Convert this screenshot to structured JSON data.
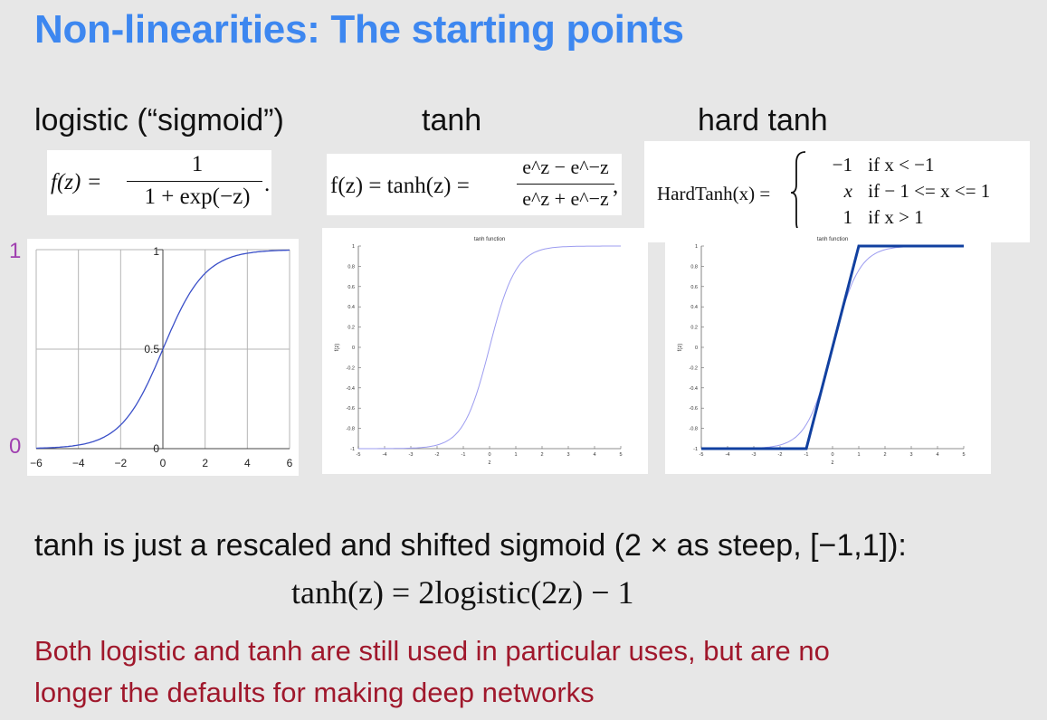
{
  "slide": {
    "title": "Non-linearities: The starting points"
  },
  "columns": {
    "logistic": {
      "heading": "logistic (“sigmoid”)",
      "formula": {
        "lhs": "f(z) =",
        "numerator": "1",
        "denominator": "1 + exp(−z)",
        "trail": "."
      },
      "y_top_label": "1",
      "y_bottom_label": "0"
    },
    "tanh": {
      "heading": "tanh",
      "formula": {
        "lhs": "f(z) = tanh(z) =",
        "numerator": "e^z − e^−z",
        "denominator": "e^z + e^−z",
        "trail": ","
      },
      "y_top_label": "1",
      "y_bottom_label": "−1"
    },
    "hardtanh": {
      "heading": "hard tanh",
      "formula": {
        "lhs": "HardTanh(x) =",
        "cases": [
          {
            "value": "−1",
            "condition": "if x < −1"
          },
          {
            "value": "x",
            "condition": "if − 1 <= x <= 1"
          },
          {
            "value": "1",
            "condition": "if x > 1"
          }
        ]
      }
    }
  },
  "chart_data": [
    {
      "type": "line",
      "series": [
        {
          "x": [
            -6,
            -5,
            -4,
            -3,
            -2,
            -1,
            0,
            1,
            2,
            3,
            4,
            5,
            6
          ],
          "y": [
            0.0025,
            0.0067,
            0.018,
            0.047,
            0.119,
            0.269,
            0.5,
            0.731,
            0.881,
            0.953,
            0.982,
            0.993,
            0.9975
          ]
        }
      ],
      "xlim": [
        -6,
        6
      ],
      "ylim": [
        0,
        1
      ],
      "xticks": [
        "−6",
        "−4",
        "−2",
        "0",
        "2",
        "4",
        "6"
      ],
      "yticks": [
        "0",
        "0.5",
        "1"
      ],
      "grid": true
    },
    {
      "type": "line",
      "title": "tanh function",
      "xlabel": "z",
      "ylabel": "f(z)",
      "series": [
        {
          "x": [
            -5,
            -4,
            -3,
            -2,
            -1.5,
            -1,
            -0.5,
            0,
            0.5,
            1,
            1.5,
            2,
            3,
            4,
            5
          ],
          "y": [
            -1,
            -0.999,
            -0.995,
            -0.964,
            -0.905,
            -0.762,
            -0.462,
            0,
            0.462,
            0.762,
            0.905,
            0.964,
            0.995,
            0.999,
            1
          ]
        }
      ],
      "xlim": [
        -5,
        5
      ],
      "ylim": [
        -1,
        1
      ],
      "xticks": [
        "-5",
        "-4",
        "-3",
        "-2",
        "-1",
        "0",
        "1",
        "2",
        "3",
        "4",
        "5"
      ],
      "yticks": [
        "-1",
        "-0.8",
        "-0.6",
        "-0.4",
        "-0.2",
        "0",
        "0.2",
        "0.4",
        "0.6",
        "0.8",
        "1"
      ],
      "grid": false
    },
    {
      "type": "line",
      "title": "tanh function",
      "xlabel": "z",
      "ylabel": "f(z)",
      "series": [
        {
          "x": [
            -5,
            -4,
            -3,
            -2,
            -1.5,
            -1,
            -0.5,
            0,
            0.5,
            1,
            1.5,
            2,
            3,
            4,
            5
          ],
          "y": [
            -1,
            -0.999,
            -0.995,
            -0.964,
            -0.905,
            -0.762,
            -0.462,
            0,
            0.462,
            0.762,
            0.905,
            0.964,
            0.995,
            0.999,
            1
          ]
        },
        {
          "x": [
            -5,
            -1,
            1,
            5
          ],
          "y": [
            -1,
            -1,
            1,
            1
          ]
        }
      ],
      "xlim": [
        -5,
        5
      ],
      "ylim": [
        -1,
        1
      ],
      "xticks": [
        "-5",
        "-4",
        "-3",
        "-2",
        "-1",
        "0",
        "1",
        "2",
        "3",
        "4",
        "5"
      ],
      "yticks": [
        "-1",
        "-0.8",
        "-0.6",
        "-0.4",
        "-0.2",
        "0",
        "0.2",
        "0.4",
        "0.6",
        "0.8",
        "1"
      ],
      "grid": false
    }
  ],
  "notes": {
    "relation_text": "tanh is just a rescaled and shifted sigmoid (2 × as steep, [−1,1]):",
    "relation_formula": "tanh(z) = 2logistic(2z) − 1",
    "red_line1": "Both logistic and tanh are still used in particular uses, but are no",
    "red_line2": "longer the defaults for making deep networks"
  },
  "colors": {
    "title": "#3d87f0",
    "red_text": "#a0182c",
    "side_label": "#a040b0",
    "sigmoid_curve": "#3a4fc8",
    "tanh_curve": "#9c9cf0",
    "hardtanh_line": "#1140a0"
  }
}
